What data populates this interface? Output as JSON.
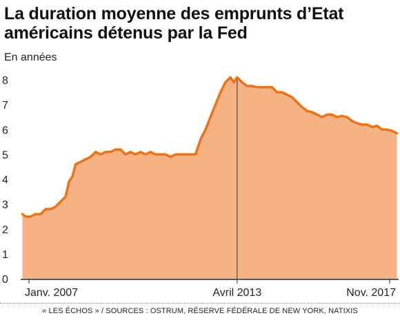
{
  "header": {
    "title": "La duration moyenne des emprunts d’Etat américains détenus par la Fed",
    "subtitle": "En années"
  },
  "footer": {
    "source": "« LES ÉCHOS » / SOURCES : OSTRUM, RÉSERVE FÉDÉRALE DE NEW YORK, NATIXIS"
  },
  "colors": {
    "line": "#E8731A",
    "area": "#F7B284",
    "axis": "#222222",
    "marker": "#333333"
  },
  "chart_data": {
    "type": "area",
    "title": "La duration moyenne des emprunts d’Etat américains détenus par la Fed",
    "ylabel": "En années",
    "ylim": [
      0,
      8
    ],
    "xlim": [
      2006.75,
      2018.1
    ],
    "yticks": [
      0,
      1,
      2,
      3,
      4,
      5,
      6,
      7,
      8
    ],
    "xtick_labels": [
      {
        "label": "Janv. 2007",
        "x": 2007.0
      },
      {
        "label": "Avril 2013",
        "x": 2013.25
      },
      {
        "label": "Nov. 2017",
        "x": 2017.83
      }
    ],
    "annotations": [
      {
        "type": "vertical-line",
        "x": 2013.25,
        "label": "Avril 2013"
      }
    ],
    "series": [
      {
        "values_x": [
          2006.8,
          2006.9,
          2007.05,
          2007.2,
          2007.35,
          2007.5,
          2007.65,
          2007.8,
          2007.95,
          2008.1,
          2008.2,
          2008.3,
          2008.4,
          2008.55,
          2008.7,
          2008.85,
          2009.0,
          2009.15,
          2009.3,
          2009.45,
          2009.6,
          2009.75,
          2009.9,
          2010.05,
          2010.2,
          2010.35,
          2010.5,
          2010.65,
          2010.8,
          2010.95,
          2011.1,
          2011.25,
          2011.4,
          2011.55,
          2011.7,
          2011.85,
          2012.0,
          2012.15,
          2012.3,
          2012.45,
          2012.6,
          2012.75,
          2012.9,
          2013.05,
          2013.15,
          2013.25,
          2013.4,
          2013.55,
          2013.7,
          2013.85,
          2014.0,
          2014.15,
          2014.3,
          2014.45,
          2014.6,
          2014.75,
          2014.9,
          2015.05,
          2015.2,
          2015.35,
          2015.5,
          2015.65,
          2015.8,
          2015.95,
          2016.1,
          2016.25,
          2016.4,
          2016.55,
          2016.7,
          2016.85,
          2017.0,
          2017.15,
          2017.3,
          2017.45,
          2017.6,
          2017.75,
          2017.9,
          2018.05
        ],
        "values_y": [
          2.6,
          2.5,
          2.5,
          2.6,
          2.6,
          2.8,
          2.8,
          2.9,
          3.1,
          3.3,
          3.9,
          4.1,
          4.6,
          4.7,
          4.8,
          4.9,
          5.1,
          5.0,
          5.1,
          5.1,
          5.2,
          5.2,
          5.0,
          5.1,
          5.0,
          5.1,
          5.0,
          5.1,
          5.0,
          5.0,
          5.0,
          4.9,
          5.0,
          5.0,
          5.0,
          5.0,
          5.0,
          5.6,
          6.0,
          6.5,
          7.0,
          7.5,
          7.9,
          8.1,
          7.9,
          8.1,
          7.9,
          7.75,
          7.75,
          7.7,
          7.7,
          7.7,
          7.7,
          7.5,
          7.5,
          7.4,
          7.3,
          7.1,
          6.9,
          6.75,
          6.7,
          6.6,
          6.5,
          6.6,
          6.6,
          6.5,
          6.55,
          6.5,
          6.35,
          6.25,
          6.2,
          6.2,
          6.1,
          6.15,
          6.0,
          6.0,
          5.95,
          5.85
        ]
      }
    ]
  }
}
